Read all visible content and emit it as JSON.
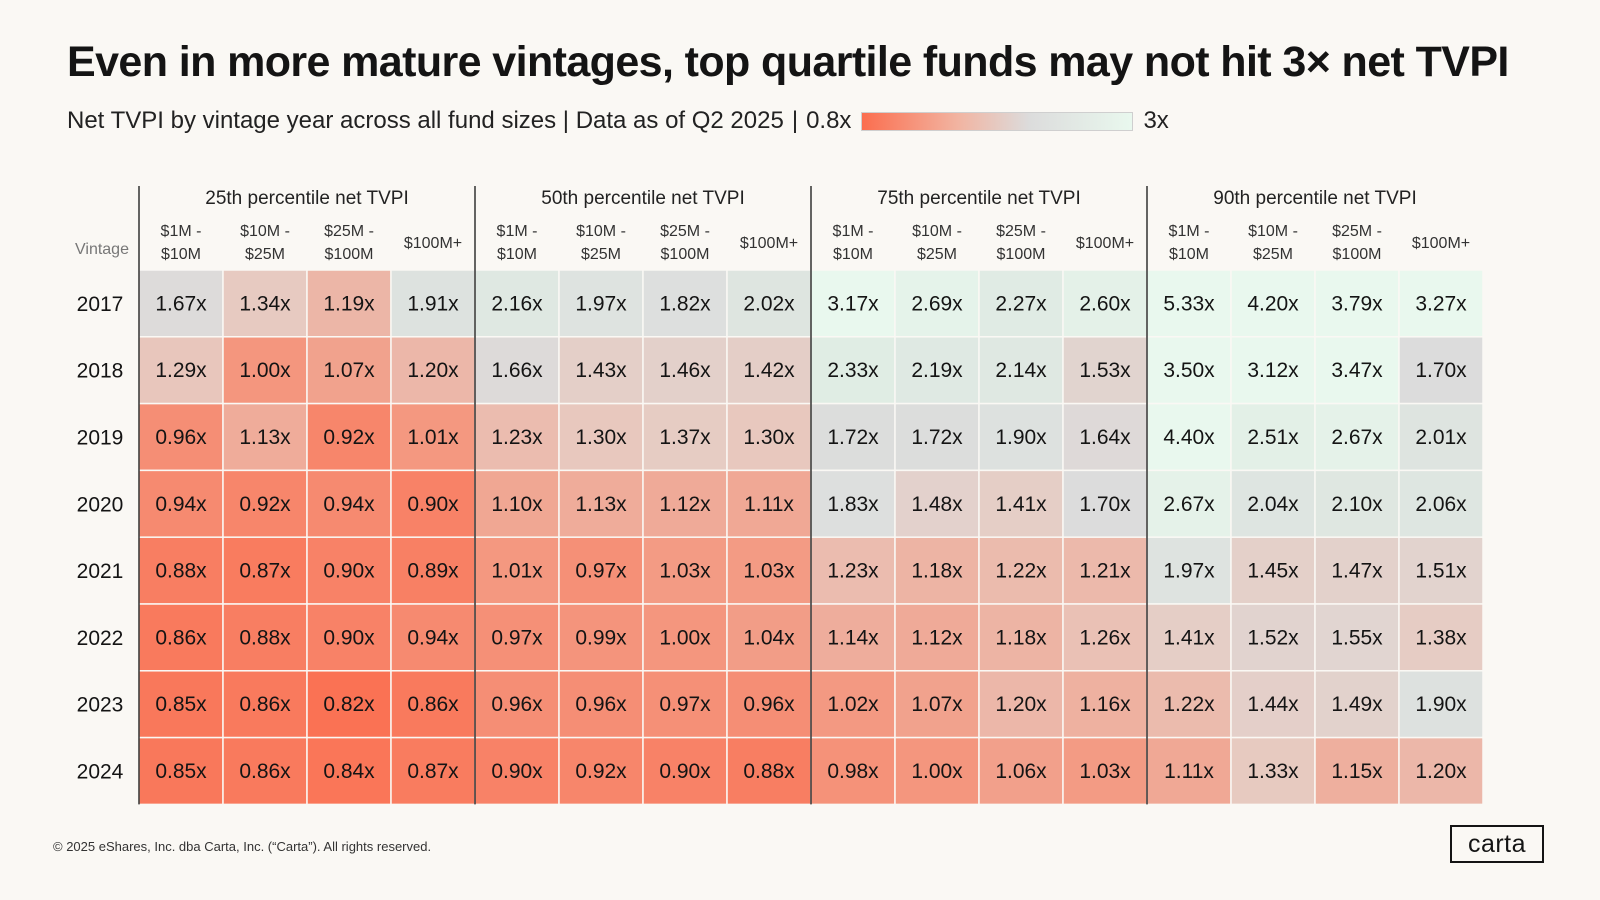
{
  "title": "Even in more mature vintages, top quartile funds may not hit 3× net TVPI",
  "subtitle": {
    "text": "Net TVPI by vintage year across all fund sizes | Data as of Q2 2025",
    "separator": "|",
    "scale_min_label": "0.8x",
    "scale_max_label": "3x"
  },
  "footer": "© 2025 eShares, Inc. dba Carta, Inc. (“Carta”). All rights reserved.",
  "logo_text": "carta",
  "colors": {
    "low": "#fb6e4f",
    "mid": "#dcdcdc",
    "high": "#e9f8ee",
    "background": "#faf8f4"
  },
  "chart_data": {
    "type": "heatmap",
    "title": "Even in more mature vintages, top quartile funds may not hit 3× net TVPI",
    "row_header": "Vintage",
    "rows": [
      "2017",
      "2018",
      "2019",
      "2020",
      "2021",
      "2022",
      "2023",
      "2024"
    ],
    "color_scale": {
      "min": 0.8,
      "max": 3,
      "min_label": "0.8x",
      "max_label": "3x"
    },
    "groups": [
      {
        "name": "25th percentile net TVPI",
        "columns": [
          {
            "line1": "$1M -",
            "line2": "$10M"
          },
          {
            "line1": "$10M -",
            "line2": "$25M"
          },
          {
            "line1": "$25M -",
            "line2": "$100M"
          },
          {
            "line1": "",
            "line2": "$100M+"
          }
        ],
        "values": [
          [
            "1.67x",
            "1.34x",
            "1.19x",
            "1.91x"
          ],
          [
            "1.29x",
            "1.00x",
            "1.07x",
            "1.20x"
          ],
          [
            "0.96x",
            "1.13x",
            "0.92x",
            "1.01x"
          ],
          [
            "0.94x",
            "0.92x",
            "0.94x",
            "0.90x"
          ],
          [
            "0.88x",
            "0.87x",
            "0.90x",
            "0.89x"
          ],
          [
            "0.86x",
            "0.88x",
            "0.90x",
            "0.94x"
          ],
          [
            "0.85x",
            "0.86x",
            "0.82x",
            "0.86x"
          ],
          [
            "0.85x",
            "0.86x",
            "0.84x",
            "0.87x"
          ]
        ]
      },
      {
        "name": "50th percentile net TVPI",
        "columns": [
          {
            "line1": "$1M -",
            "line2": "$10M"
          },
          {
            "line1": "$10M -",
            "line2": "$25M"
          },
          {
            "line1": "$25M -",
            "line2": "$100M"
          },
          {
            "line1": "",
            "line2": "$100M+"
          }
        ],
        "values": [
          [
            "2.16x",
            "1.97x",
            "1.82x",
            "2.02x"
          ],
          [
            "1.66x",
            "1.43x",
            "1.46x",
            "1.42x"
          ],
          [
            "1.23x",
            "1.30x",
            "1.37x",
            "1.30x"
          ],
          [
            "1.10x",
            "1.13x",
            "1.12x",
            "1.11x"
          ],
          [
            "1.01x",
            "0.97x",
            "1.03x",
            "1.03x"
          ],
          [
            "0.97x",
            "0.99x",
            "1.00x",
            "1.04x"
          ],
          [
            "0.96x",
            "0.96x",
            "0.97x",
            "0.96x"
          ],
          [
            "0.90x",
            "0.92x",
            "0.90x",
            "0.88x"
          ]
        ]
      },
      {
        "name": "75th percentile net TVPI",
        "columns": [
          {
            "line1": "$1M -",
            "line2": "$10M"
          },
          {
            "line1": "$10M -",
            "line2": "$25M"
          },
          {
            "line1": "$25M -",
            "line2": "$100M"
          },
          {
            "line1": "",
            "line2": "$100M+"
          }
        ],
        "values": [
          [
            "3.17x",
            "2.69x",
            "2.27x",
            "2.60x"
          ],
          [
            "2.33x",
            "2.19x",
            "2.14x",
            "1.53x"
          ],
          [
            "1.72x",
            "1.72x",
            "1.90x",
            "1.64x"
          ],
          [
            "1.83x",
            "1.48x",
            "1.41x",
            "1.70x"
          ],
          [
            "1.23x",
            "1.18x",
            "1.22x",
            "1.21x"
          ],
          [
            "1.14x",
            "1.12x",
            "1.18x",
            "1.26x"
          ],
          [
            "1.02x",
            "1.07x",
            "1.20x",
            "1.16x"
          ],
          [
            "0.98x",
            "1.00x",
            "1.06x",
            "1.03x"
          ]
        ]
      },
      {
        "name": "90th percentile net TVPI",
        "columns": [
          {
            "line1": "$1M -",
            "line2": "$10M"
          },
          {
            "line1": "$10M -",
            "line2": "$25M"
          },
          {
            "line1": "$25M -",
            "line2": "$100M"
          },
          {
            "line1": "",
            "line2": "$100M+"
          }
        ],
        "values": [
          [
            "5.33x",
            "4.20x",
            "3.79x",
            "3.27x"
          ],
          [
            "3.50x",
            "3.12x",
            "3.47x",
            "1.70x"
          ],
          [
            "4.40x",
            "2.51x",
            "2.67x",
            "2.01x"
          ],
          [
            "2.67x",
            "2.04x",
            "2.10x",
            "2.06x"
          ],
          [
            "1.97x",
            "1.45x",
            "1.47x",
            "1.51x"
          ],
          [
            "1.41x",
            "1.52x",
            "1.55x",
            "1.38x"
          ],
          [
            "1.22x",
            "1.44x",
            "1.49x",
            "1.90x"
          ],
          [
            "1.11x",
            "1.33x",
            "1.15x",
            "1.20x"
          ]
        ]
      }
    ]
  }
}
